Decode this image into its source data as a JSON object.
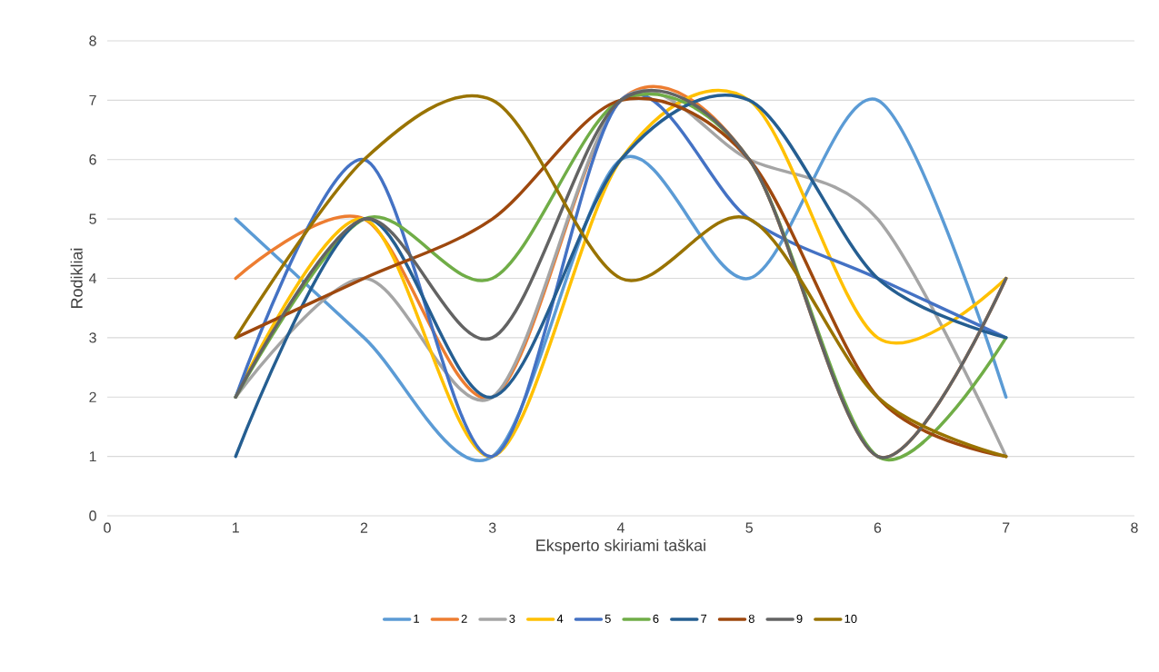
{
  "chart_data": {
    "type": "line",
    "xlabel": "Eksperto skiriami taškai",
    "ylabel": "Rodikliai",
    "xlim": [
      0,
      8
    ],
    "ylim": [
      0,
      8
    ],
    "xticks": [
      0,
      1,
      2,
      3,
      4,
      5,
      6,
      7,
      8
    ],
    "yticks": [
      0,
      1,
      2,
      3,
      4,
      5,
      6,
      7,
      8
    ],
    "x": [
      1,
      2,
      3,
      4,
      5,
      6,
      7
    ],
    "grid": "y",
    "legend": "bottom",
    "marker": "none",
    "line_style": "solid",
    "series": [
      {
        "name": "1",
        "color": "#5b9bd5",
        "values": [
          5,
          3,
          1,
          6,
          4,
          7,
          2
        ]
      },
      {
        "name": "2",
        "color": "#ed7d31",
        "values": [
          4,
          5,
          2,
          7,
          6,
          1,
          4
        ]
      },
      {
        "name": "3",
        "color": "#a5a5a5",
        "values": [
          2,
          4,
          2,
          7,
          6,
          5,
          1
        ]
      },
      {
        "name": "4",
        "color": "#ffc000",
        "values": [
          2,
          5,
          1,
          6,
          7,
          3,
          4
        ]
      },
      {
        "name": "5",
        "color": "#4472c4",
        "values": [
          2,
          6,
          1,
          7,
          5,
          4,
          3
        ]
      },
      {
        "name": "6",
        "color": "#70ad47",
        "values": [
          2,
          5,
          4,
          7,
          6,
          1,
          3
        ]
      },
      {
        "name": "7",
        "color": "#255e91",
        "values": [
          1,
          5,
          2,
          6,
          7,
          4,
          3
        ]
      },
      {
        "name": "8",
        "color": "#9e480e",
        "values": [
          3,
          4,
          5,
          7,
          6,
          2,
          1
        ]
      },
      {
        "name": "9",
        "color": "#636363",
        "values": [
          2,
          5,
          3,
          7,
          6,
          1,
          4
        ]
      },
      {
        "name": "10",
        "color": "#997300",
        "values": [
          3,
          6,
          7,
          4,
          5,
          2,
          1
        ]
      }
    ]
  }
}
